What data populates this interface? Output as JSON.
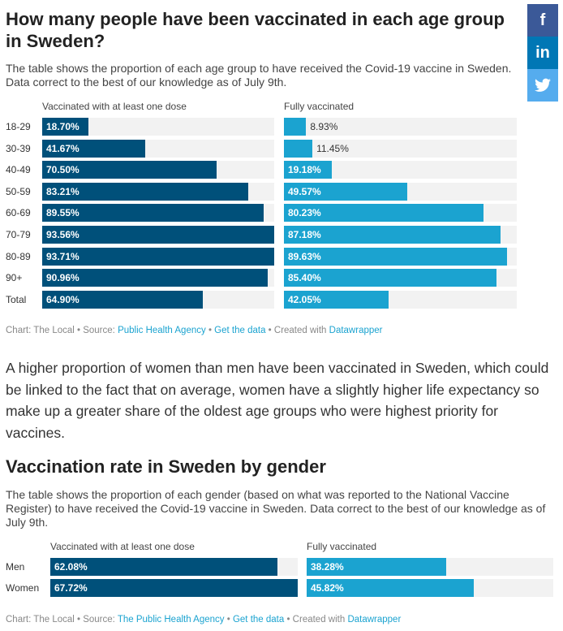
{
  "share": {
    "facebook": "f",
    "linkedin": "in",
    "twitter": "🐦",
    "colors": {
      "facebook": "#3b5998",
      "linkedin": "#0077b5",
      "twitter": "#55acee"
    }
  },
  "article": {
    "title1": "How many people have been vaccinated in each age group in Sweden?",
    "desc1": "The table shows the proportion of each age group to have received the Covid-19 vaccine in Sweden. Data correct to the best of our knowledge as of July 9th.",
    "paragraph": "A higher proportion of women than men have been vaccinated in Sweden, which could be linked to the fact that on average, women have a slightly higher life expectancy so make up a greater share of the oldest age groups who were highest priority for vaccines.",
    "title2": "Vaccination rate in Sweden by gender",
    "desc2": "The table shows the proportion of each gender (based on what was reported to the National Vaccine Register) to have received the Covid-19 vaccine in Sweden. Data correct to the best of our knowledge as of July 9th."
  },
  "footer1": {
    "chart": "Chart: The Local • Source: ",
    "source": "Public Health Agency",
    "sep1": " • ",
    "get": "Get the data",
    "sep2": " • Created with ",
    "dw": "Datawrapper"
  },
  "footer2": {
    "chart": "Chart: The Local • Source: ",
    "source": "The Public Health Agency",
    "sep1": " • ",
    "get": "Get the data",
    "sep2": " • Created with ",
    "dw": "Datawrapper"
  },
  "chart_data": [
    {
      "type": "bar",
      "orientation": "horizontal",
      "colors": {
        "one_dose": "#00507a",
        "fully": "#1ba3d0",
        "track": "#f2f2f2"
      },
      "categories": [
        "18-29",
        "30-39",
        "40-49",
        "50-59",
        "60-69",
        "70-79",
        "80-89",
        "90+",
        "Total"
      ],
      "series": [
        {
          "name": "Vaccinated with at least one dose",
          "values": [
            18.7,
            41.67,
            70.5,
            83.21,
            89.55,
            93.56,
            93.71,
            90.96,
            64.9
          ]
        },
        {
          "name": "Fully vaccinated",
          "values": [
            8.93,
            11.45,
            19.18,
            49.57,
            80.23,
            87.18,
            89.63,
            85.4,
            42.05
          ]
        }
      ],
      "value_suffix": "%"
    },
    {
      "type": "bar",
      "orientation": "horizontal",
      "colors": {
        "one_dose": "#00507a",
        "fully": "#1ba3d0",
        "track": "#f2f2f2"
      },
      "categories": [
        "Men",
        "Women"
      ],
      "series": [
        {
          "name": "Vaccinated with at least one dose",
          "values": [
            62.08,
            67.72
          ]
        },
        {
          "name": "Fully vaccinated",
          "values": [
            38.28,
            45.82
          ]
        }
      ],
      "value_suffix": "%"
    }
  ]
}
